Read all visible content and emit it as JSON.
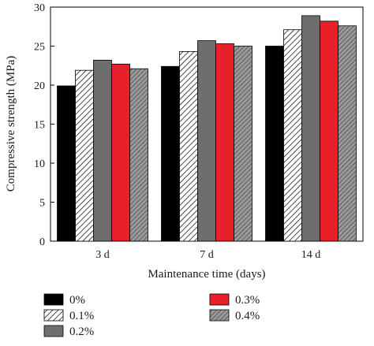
{
  "chart_data": {
    "type": "bar",
    "title": "",
    "xlabel": "Maintenance time (days)",
    "ylabel": "Compressive strength (MPa)",
    "ylim": [
      0,
      30
    ],
    "yticks": [
      "0",
      "5",
      "10",
      "15",
      "20",
      "25",
      "30"
    ],
    "categories": [
      "3 d",
      "7 d",
      "14 d"
    ],
    "grid": false,
    "legend_position": "bottom",
    "series": [
      {
        "name": "0%",
        "values": [
          19.9,
          22.4,
          25.0
        ],
        "color": "#000000",
        "pattern": "solid"
      },
      {
        "name": "0.1%",
        "values": [
          21.9,
          24.3,
          27.1
        ],
        "color": "#ffffff",
        "pattern": "hatch"
      },
      {
        "name": "0.2%",
        "values": [
          23.2,
          25.7,
          28.9
        ],
        "color": "#6e6e6e",
        "pattern": "solid"
      },
      {
        "name": "0.3%",
        "values": [
          22.7,
          25.3,
          28.2
        ],
        "color": "#e8202a",
        "pattern": "solid"
      },
      {
        "name": "0.4%",
        "values": [
          22.1,
          25.0,
          27.6
        ],
        "color": "#808080",
        "pattern": "hatch-dark"
      }
    ]
  }
}
